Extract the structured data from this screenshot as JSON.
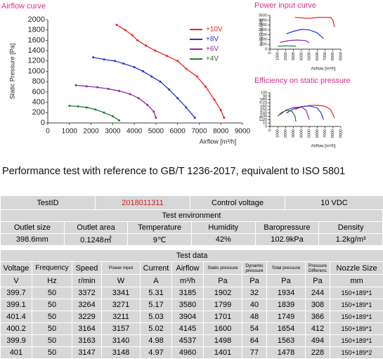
{
  "chart_data": [
    {
      "type": "line",
      "title": "Airflow curve",
      "xlabel": "Airflow [m³/h]",
      "ylabel": "Static Pressure [Pa]",
      "xlim": [
        0,
        9000
      ],
      "ylim": [
        0,
        2000
      ],
      "xticks": [
        0,
        1000,
        2000,
        3000,
        4000,
        5000,
        6000,
        7000,
        8000,
        9000
      ],
      "yticks": [
        0,
        200,
        400,
        600,
        800,
        1000,
        1200,
        1400,
        1600,
        1800,
        2000
      ],
      "markers": true,
      "legend": "upper right",
      "series": [
        {
          "name": "+10V",
          "color": "#e8251f",
          "x": [
            3185,
            3580,
            3904,
            4145,
            4537,
            4960,
            5500,
            6000,
            6400,
            6900,
            7300,
            7700,
            8000,
            8150
          ],
          "values": [
            1902,
            1799,
            1701,
            1600,
            1498,
            1401,
            1300,
            1200,
            1050,
            900,
            700,
            450,
            250,
            100
          ]
        },
        {
          "name": "+8V",
          "color": "#2433d6",
          "x": [
            2100,
            2600,
            3100,
            3500,
            4000,
            4400,
            4800,
            5200,
            5600,
            6000,
            6400,
            6800
          ],
          "values": [
            1270,
            1230,
            1200,
            1150,
            1080,
            1000,
            900,
            800,
            650,
            480,
            300,
            100
          ]
        },
        {
          "name": "+6V",
          "color": "#8a2a9e",
          "x": [
            1300,
            1800,
            2300,
            2800,
            3300,
            3800,
            4200,
            4600,
            4900,
            5000
          ],
          "values": [
            730,
            710,
            690,
            660,
            620,
            560,
            480,
            350,
            220,
            100
          ]
        },
        {
          "name": "+4V",
          "color": "#1f7a2e",
          "x": [
            1000,
            1400,
            1800,
            2200,
            2600,
            3000,
            3300
          ],
          "values": [
            330,
            320,
            300,
            260,
            200,
            130,
            50
          ]
        }
      ]
    },
    {
      "type": "line",
      "title": "Power input curve",
      "xlabel": "Airflow [m³/h]",
      "ylabel": "Power input [W]",
      "xlim": [
        0,
        9000
      ],
      "ylim": [
        0,
        3500
      ],
      "xticks": [
        0,
        1000,
        2000,
        3000,
        4000,
        5000,
        6000,
        7000,
        8000,
        9000
      ],
      "yticks": [
        0,
        500,
        1000,
        1500,
        2000,
        2500,
        3000,
        3500
      ],
      "series": [
        {
          "color": "#e8251f",
          "x": [
            3200,
            4000,
            5000,
            6000,
            7000,
            7700,
            8000,
            8200
          ],
          "values": [
            3300,
            3250,
            3200,
            3300,
            3300,
            3300,
            3000,
            2300
          ]
        },
        {
          "color": "#2433d6",
          "x": [
            2100,
            3000,
            4000,
            5000,
            6000,
            6800
          ],
          "values": [
            1600,
            1850,
            2050,
            2000,
            1700,
            1100
          ]
        },
        {
          "color": "#8a2a9e",
          "x": [
            1300,
            2500,
            3500,
            4500,
            5000
          ],
          "values": [
            700,
            900,
            950,
            900,
            700
          ]
        },
        {
          "color": "#1f7a2e",
          "x": [
            1000,
            2000,
            3000,
            3300
          ],
          "values": [
            300,
            350,
            330,
            300
          ]
        }
      ]
    },
    {
      "type": "line",
      "title": "Efficiency on static pressure",
      "xlabel": "Airflow [m³/h]",
      "ylabel": "Efficiency [%]",
      "xlim": [
        0,
        9000
      ],
      "ylim": [
        0,
        100
      ],
      "xticks": [
        0,
        1000,
        2000,
        3000,
        4000,
        5000,
        6000,
        7000,
        8000,
        9000
      ],
      "yticks": [
        0,
        10,
        20,
        30,
        40,
        50,
        60,
        70,
        80,
        90,
        100
      ],
      "series": [
        {
          "color": "#e8251f",
          "x": [
            3200,
            4000,
            5000,
            6000,
            7000,
            7700,
            8200
          ],
          "values": [
            50,
            58,
            62,
            63,
            60,
            50,
            25
          ]
        },
        {
          "color": "#2433d6",
          "x": [
            2100,
            3000,
            4000,
            5000,
            6000,
            6500,
            6800
          ],
          "values": [
            40,
            52,
            59,
            61,
            55,
            40,
            20
          ]
        },
        {
          "color": "#8a2a9e",
          "x": [
            1300,
            2000,
            3000,
            4000,
            4600,
            5000
          ],
          "values": [
            35,
            48,
            56,
            58,
            48,
            20
          ]
        },
        {
          "color": "#1f7a2e",
          "x": [
            1000,
            1500,
            2200,
            2800,
            3200,
            3300
          ],
          "values": [
            30,
            42,
            48,
            45,
            30,
            15
          ]
        }
      ]
    }
  ],
  "heading": "Performance test with reference to GB/T 1236-2017, equivalent to ISO 5801",
  "table": {
    "test_id_label": "TestID",
    "test_id": "2018011311",
    "control_voltage_label": "Control voltage",
    "control_voltage": "10 VDC",
    "environment_title": "Test environment",
    "environment_headers": [
      "Outlet size",
      "Outlet area",
      "Temperature",
      "Humidity",
      "Baropressure",
      "Density"
    ],
    "environment_values": [
      "398.6mm",
      "0.1248㎡",
      "9℃",
      "42%",
      "102.9kPa",
      "1.2kg/m³"
    ],
    "data_title": "Test data",
    "data_headers": [
      "Voltage",
      "Frequency",
      "Speed",
      "Power input",
      "Current",
      "Airflow",
      "Static pressure",
      "Dynamic pressure",
      "Total pressure",
      "Pressure Differenc",
      "Nozzle Size"
    ],
    "data_units": [
      "V",
      "Hz",
      "r/min",
      "W",
      "A",
      "m³/h",
      "Pa",
      "Pa",
      "Pa",
      "Pa",
      "mm"
    ],
    "data_rows": [
      [
        "399.7",
        "50",
        "3372",
        "3341",
        "5.31",
        "3185",
        "1902",
        "32",
        "1934",
        "244",
        "150+189*1"
      ],
      [
        "399.1",
        "50",
        "3264",
        "3271",
        "5.17",
        "3580",
        "1799",
        "40",
        "1839",
        "308",
        "150+189*1"
      ],
      [
        "401.4",
        "50",
        "3229",
        "3211",
        "5.03",
        "3904",
        "1701",
        "48",
        "1749",
        "366",
        "150+189*1"
      ],
      [
        "400.2",
        "50",
        "3164",
        "3157",
        "5.02",
        "4145",
        "1600",
        "54",
        "1654",
        "412",
        "150+189*1"
      ],
      [
        "399.9",
        "50",
        "3163",
        "3140",
        "4.98",
        "4537",
        "1498",
        "64",
        "1563",
        "494",
        "150+189*1"
      ],
      [
        "401",
        "50",
        "3147",
        "3148",
        "4.97",
        "4960",
        "1401",
        "77",
        "1478",
        "228",
        "150+189*2"
      ]
    ]
  }
}
